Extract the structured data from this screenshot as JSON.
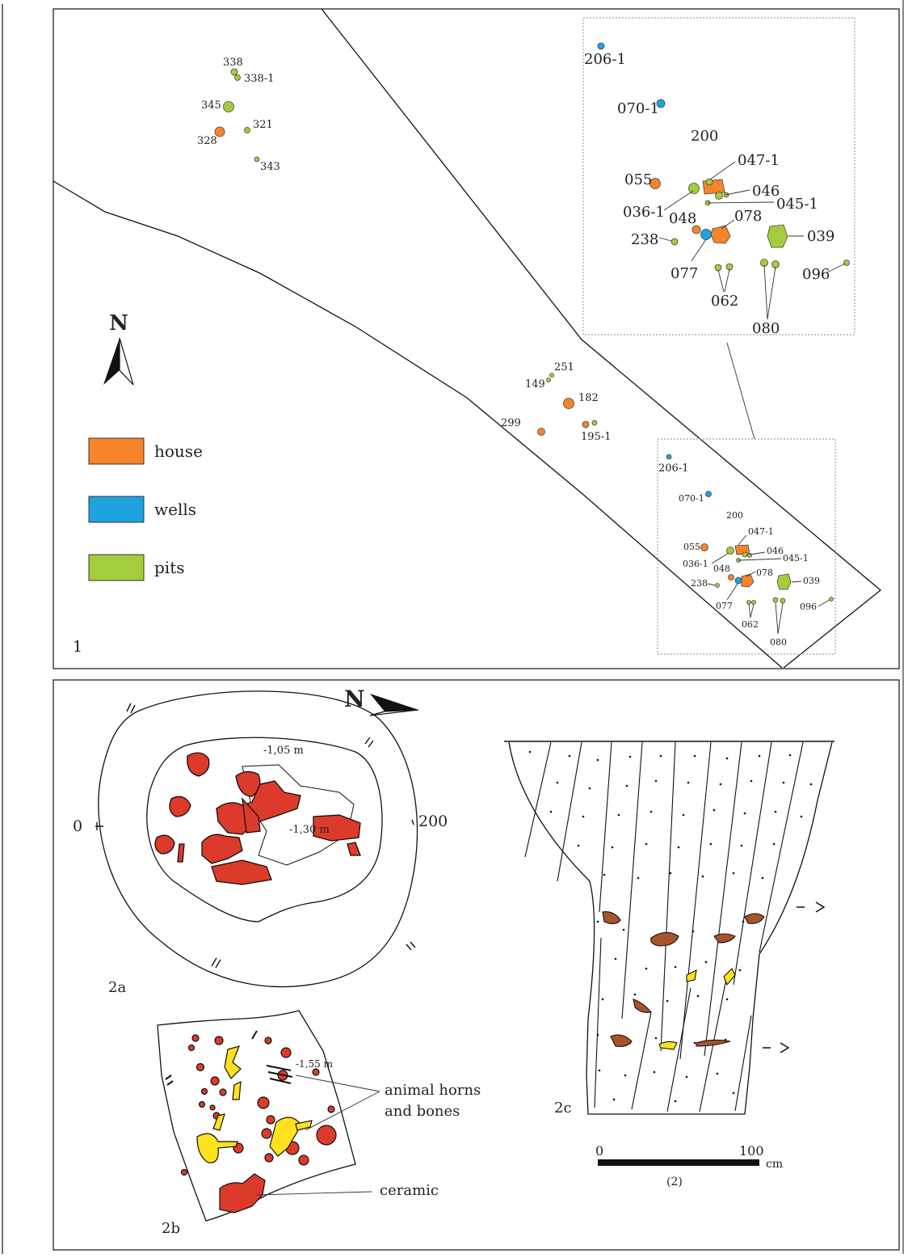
{
  "colors": {
    "house": "#f5842a",
    "wells": "#1fa3e0",
    "pits": "#a5cc3a",
    "ceramic": "#dc3a2a",
    "bone": "#ffe21e",
    "find_brown": "#a9532b"
  },
  "panel1": {
    "number": "1",
    "north": "N",
    "legend": [
      {
        "key": "house",
        "label": "house"
      },
      {
        "key": "wells",
        "label": "wells"
      },
      {
        "key": "pits",
        "label": "pits"
      }
    ],
    "features_left": [
      "338",
      "338-1",
      "345",
      "321",
      "328",
      "343"
    ],
    "features_middle": [
      "251",
      "149",
      "182",
      "299",
      "195-1"
    ],
    "features_inset": [
      "206-1",
      "070-1",
      "200",
      "047-1",
      "055",
      "046",
      "036-1",
      "045-1",
      "048",
      "078",
      "238",
      "039",
      "077",
      "062",
      "096",
      "080"
    ]
  },
  "panel2": {
    "north": "N",
    "label_2a": "2a",
    "label_2b": "2b",
    "label_2c": "2c",
    "depth_1": "-1,05 m",
    "depth_2": "-1,30 m",
    "depth_3": "-1,55 m",
    "section_left": "0",
    "section_right": "200",
    "note_bones": "animal horns and bones",
    "note_bones_line1": "animal horns",
    "note_bones_line2": "and bones",
    "note_ceramic": "ceramic",
    "scale_start": "0",
    "scale_end": "100",
    "scale_unit": "cm",
    "scale_ref": "(2)"
  }
}
